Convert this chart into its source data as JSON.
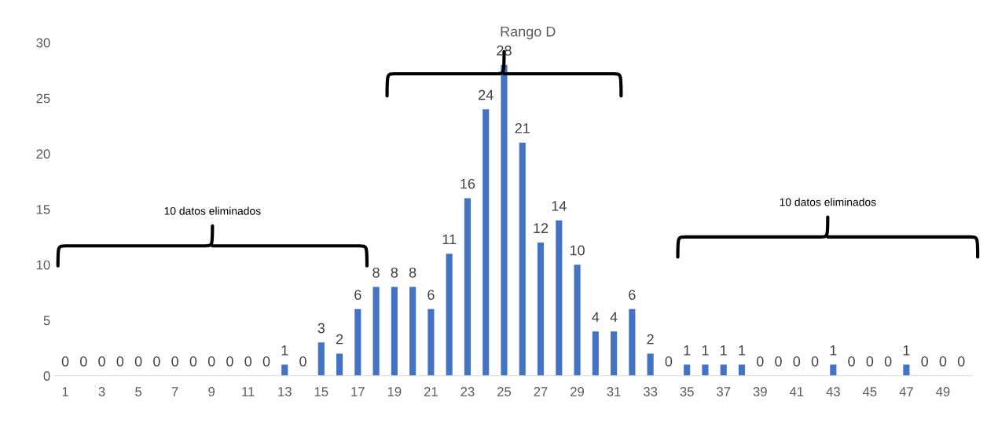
{
  "chart_data": {
    "type": "bar",
    "categories": [
      "1",
      null,
      "3",
      null,
      "5",
      null,
      "7",
      null,
      "9",
      null,
      "11",
      null,
      "13",
      null,
      "15",
      null,
      "17",
      null,
      "19",
      null,
      "21",
      null,
      "23",
      null,
      "25",
      null,
      "27",
      null,
      "29",
      null,
      "31",
      null,
      "33",
      null,
      "35",
      null,
      "37",
      null,
      "39",
      null,
      "41",
      null,
      "43",
      null,
      "45",
      null,
      "47",
      null,
      "49",
      null
    ],
    "values": [
      0,
      0,
      0,
      0,
      0,
      0,
      0,
      0,
      0,
      0,
      0,
      0,
      1,
      0,
      3,
      2,
      6,
      8,
      8,
      8,
      6,
      11,
      16,
      24,
      28,
      21,
      12,
      14,
      10,
      4,
      4,
      6,
      2,
      0,
      1,
      1,
      1,
      1,
      0,
      0,
      0,
      0,
      1,
      0,
      0,
      0,
      1,
      0,
      0,
      0
    ],
    "color": "#4472c4",
    "ylim": [
      0,
      30
    ],
    "yticks": [
      0,
      5,
      10,
      15,
      20,
      25,
      30
    ],
    "data_labels": true,
    "annotations": [
      "10 datos eliminados",
      "Rango D",
      "10 datos eliminados"
    ]
  }
}
